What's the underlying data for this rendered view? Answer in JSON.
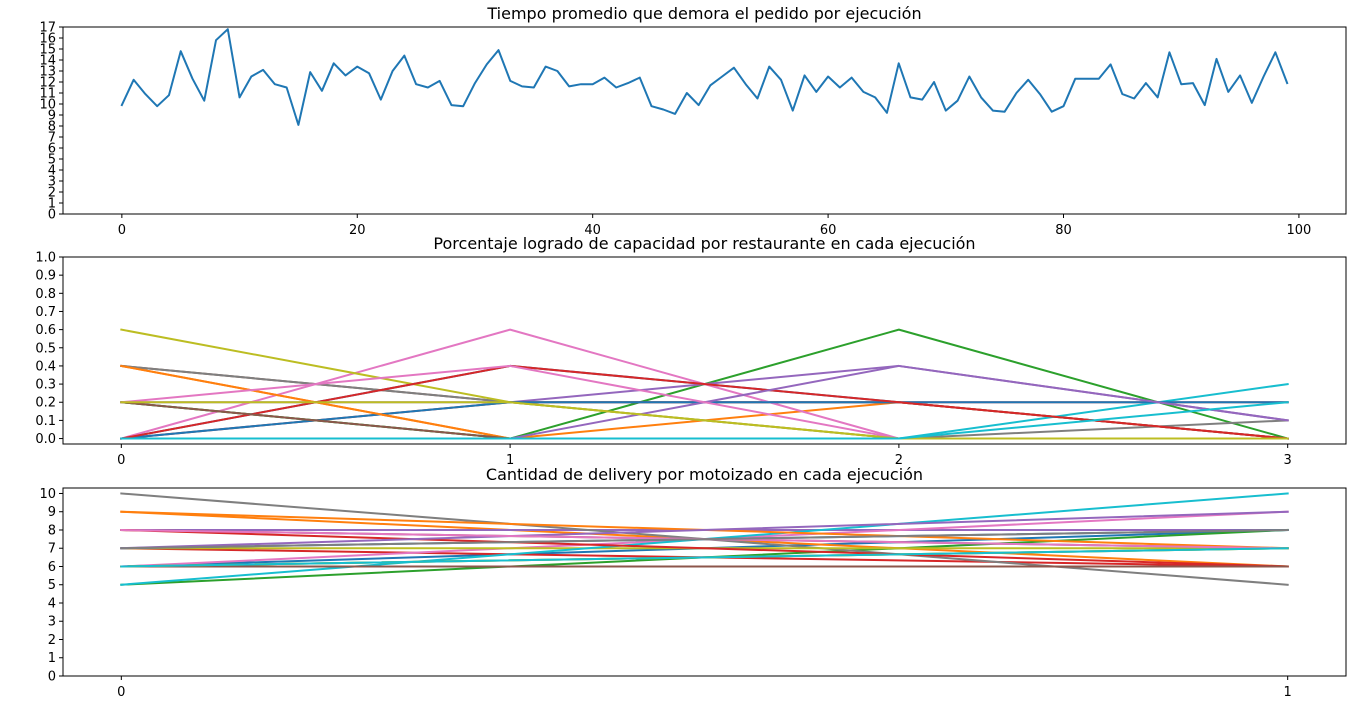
{
  "chart_data": [
    {
      "type": "line",
      "title": "Tiempo promedio que demora el pedido por ejecución",
      "xlabel": "",
      "ylabel": "",
      "xlim": [
        -5,
        104
      ],
      "ylim": [
        0,
        17
      ],
      "xticks": [
        0,
        20,
        40,
        60,
        80,
        100
      ],
      "yticks": [
        0,
        1,
        2,
        3,
        4,
        5,
        6,
        7,
        8,
        9,
        10,
        11,
        12,
        13,
        14,
        15,
        16,
        17
      ],
      "grid": false,
      "legend": "none",
      "series": [
        {
          "color": "#1f77b4",
          "x": [
            0,
            1,
            2,
            3,
            4,
            5,
            6,
            7,
            8,
            9,
            10,
            11,
            12,
            13,
            14,
            15,
            16,
            17,
            18,
            19,
            20,
            21,
            22,
            23,
            24,
            25,
            26,
            27,
            28,
            29,
            30,
            31,
            32,
            33,
            34,
            35,
            36,
            37,
            38,
            39,
            40,
            41,
            42,
            43,
            44,
            45,
            46,
            47,
            48,
            49,
            50,
            51,
            52,
            53,
            54,
            55,
            56,
            57,
            58,
            59,
            60,
            61,
            62,
            63,
            64,
            65,
            66,
            67,
            68,
            69,
            70,
            71,
            72,
            73,
            74,
            75,
            76,
            77,
            78,
            79,
            80,
            81,
            82,
            83,
            84,
            85,
            86,
            87,
            88,
            89,
            90,
            91,
            92,
            93,
            94,
            95,
            96,
            97,
            98,
            99
          ],
          "y": [
            9.9,
            12.2,
            10.9,
            9.8,
            10.8,
            14.8,
            12.3,
            10.3,
            15.8,
            16.8,
            10.6,
            12.5,
            13.1,
            11.8,
            11.5,
            8.1,
            12.9,
            11.2,
            13.7,
            12.6,
            13.4,
            12.8,
            10.4,
            13.0,
            14.4,
            11.8,
            11.5,
            12.1,
            9.9,
            9.8,
            11.9,
            13.6,
            14.9,
            12.1,
            11.6,
            11.5,
            13.4,
            13.0,
            11.6,
            11.8,
            11.8,
            12.4,
            11.5,
            11.9,
            12.4,
            9.8,
            9.5,
            9.1,
            11.0,
            9.9,
            11.7,
            12.5,
            13.3,
            11.8,
            10.5,
            13.4,
            12.2,
            9.4,
            12.6,
            11.1,
            12.5,
            11.5,
            12.4,
            11.1,
            10.6,
            9.2,
            13.7,
            10.6,
            10.4,
            12.0,
            9.4,
            10.3,
            12.5,
            10.6,
            9.4,
            9.3,
            11.0,
            12.2,
            10.9,
            9.3,
            9.8,
            12.3,
            12.3,
            12.3,
            13.6,
            10.9,
            10.5,
            11.9,
            10.6,
            14.7,
            11.8,
            11.9,
            9.9,
            14.1,
            11.1,
            12.6,
            10.1,
            12.5,
            14.7,
            11.9
          ]
        }
      ]
    },
    {
      "type": "line",
      "title": "Porcentaje logrado de capacidad por restaurante en cada ejecución",
      "xlabel": "",
      "ylabel": "",
      "xlim": [
        -0.15,
        3.15
      ],
      "ylim": [
        -0.03,
        1.0
      ],
      "xticks": [
        0,
        1,
        2,
        3
      ],
      "yticks": [
        0.0,
        0.1,
        0.2,
        0.3,
        0.4,
        0.5,
        0.6,
        0.7,
        0.8,
        0.9,
        1.0
      ],
      "grid": false,
      "legend": "none",
      "x": [
        0,
        1,
        2,
        3
      ],
      "series": [
        {
          "color": "#1f77b4",
          "values": [
            0.0,
            0.4,
            0.2,
            0.0
          ]
        },
        {
          "color": "#ff7f0e",
          "values": [
            0.4,
            0.0,
            0.2,
            0.0
          ]
        },
        {
          "color": "#2ca02c",
          "values": [
            0.2,
            0.0,
            0.6,
            0.0
          ]
        },
        {
          "color": "#d62728",
          "values": [
            0.0,
            0.2,
            0.2,
            0.2
          ]
        },
        {
          "color": "#9467bd",
          "values": [
            0.2,
            0.2,
            0.4,
            0.1
          ]
        },
        {
          "color": "#8c564b",
          "values": [
            0.4,
            0.2,
            0.2,
            0.0
          ]
        },
        {
          "color": "#e377c2",
          "values": [
            0.0,
            0.6,
            0.0,
            0.0
          ]
        },
        {
          "color": "#7f7f7f",
          "values": [
            0.4,
            0.2,
            0.0,
            0.1
          ]
        },
        {
          "color": "#bcbd22",
          "values": [
            0.6,
            0.2,
            0.0,
            0.0
          ]
        },
        {
          "color": "#17becf",
          "values": [
            0.0,
            0.0,
            0.0,
            0.3
          ]
        },
        {
          "color": "#1f77b4",
          "values": [
            0.0,
            0.2,
            0.2,
            0.2
          ]
        },
        {
          "color": "#ff7f0e",
          "values": [
            0.4,
            0.0,
            0.0,
            0.0
          ]
        },
        {
          "color": "#2ca02c",
          "values": [
            0.2,
            0.0,
            0.0,
            0.0
          ]
        },
        {
          "color": "#d62728",
          "values": [
            0.0,
            0.4,
            0.2,
            0.0
          ]
        },
        {
          "color": "#9467bd",
          "values": [
            0.0,
            0.0,
            0.4,
            0.1
          ]
        },
        {
          "color": "#8c564b",
          "values": [
            0.2,
            0.0,
            0.0,
            0.0
          ]
        },
        {
          "color": "#e377c2",
          "values": [
            0.2,
            0.4,
            0.0,
            0.0
          ]
        },
        {
          "color": "#7f7f7f",
          "values": [
            0.0,
            0.0,
            0.0,
            0.0
          ]
        },
        {
          "color": "#bcbd22",
          "values": [
            0.2,
            0.2,
            0.0,
            0.0
          ]
        },
        {
          "color": "#17becf",
          "values": [
            0.0,
            0.0,
            0.0,
            0.2
          ]
        }
      ]
    },
    {
      "type": "line",
      "title": "Cantidad de delivery por motoizado en cada ejecución",
      "xlabel": "",
      "ylabel": "",
      "xlim": [
        -0.05,
        1.05
      ],
      "ylim": [
        0,
        10.3
      ],
      "xticks": [
        0,
        1
      ],
      "yticks": [
        0,
        1,
        2,
        3,
        4,
        5,
        6,
        7,
        8,
        9,
        10
      ],
      "grid": false,
      "legend": "none",
      "x": [
        0,
        1
      ],
      "series": [
        {
          "color": "#1f77b4",
          "values": [
            6,
            8
          ]
        },
        {
          "color": "#ff7f0e",
          "values": [
            9,
            6
          ]
        },
        {
          "color": "#2ca02c",
          "values": [
            5,
            8
          ]
        },
        {
          "color": "#d62728",
          "values": [
            7,
            6
          ]
        },
        {
          "color": "#9467bd",
          "values": [
            8,
            8
          ]
        },
        {
          "color": "#8c564b",
          "values": [
            8,
            7
          ]
        },
        {
          "color": "#e377c2",
          "values": [
            6,
            9
          ]
        },
        {
          "color": "#7f7f7f",
          "values": [
            10,
            5
          ]
        },
        {
          "color": "#bcbd22",
          "values": [
            7,
            7
          ]
        },
        {
          "color": "#17becf",
          "values": [
            5,
            10
          ]
        },
        {
          "color": "#1f77b4",
          "values": [
            7,
            8
          ]
        },
        {
          "color": "#ff7f0e",
          "values": [
            9,
            7
          ]
        },
        {
          "color": "#2ca02c",
          "values": [
            6,
            7
          ]
        },
        {
          "color": "#d62728",
          "values": [
            8,
            6
          ]
        },
        {
          "color": "#9467bd",
          "values": [
            7,
            9
          ]
        },
        {
          "color": "#8c564b",
          "values": [
            6,
            6
          ]
        },
        {
          "color": "#e377c2",
          "values": [
            8,
            7
          ]
        },
        {
          "color": "#7f7f7f",
          "values": [
            7,
            8
          ]
        },
        {
          "color": "#bcbd22",
          "values": [
            6,
            7
          ]
        },
        {
          "color": "#17becf",
          "values": [
            6,
            7
          ]
        }
      ]
    }
  ]
}
